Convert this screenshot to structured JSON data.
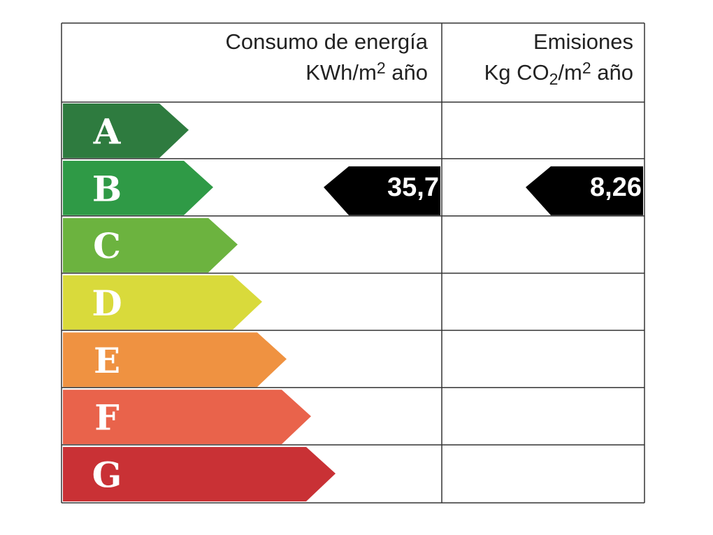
{
  "header": {
    "energy": {
      "title": "Consumo de energía",
      "unit_parts": [
        {
          "text": "KWh/m"
        },
        {
          "text": "2",
          "shift": "super"
        },
        {
          "text": " año"
        }
      ]
    },
    "emissions": {
      "title": "Emisiones",
      "unit_parts": [
        {
          "text": "Kg CO"
        },
        {
          "text": "2",
          "shift": "sub"
        },
        {
          "text": "/m"
        },
        {
          "text": "2",
          "shift": "super"
        },
        {
          "text": " año"
        }
      ]
    }
  },
  "rows": [
    {
      "letter": "A",
      "color": "#2e7b3f"
    },
    {
      "letter": "B",
      "color": "#2f9a46",
      "energy": "35,7",
      "emissions": "8,26"
    },
    {
      "letter": "C",
      "color": "#6cb33f"
    },
    {
      "letter": "D",
      "color": "#d9da3b"
    },
    {
      "letter": "E",
      "color": "#ef9241"
    },
    {
      "letter": "F",
      "color": "#e9634b"
    },
    {
      "letter": "G",
      "color": "#c93135"
    }
  ]
}
